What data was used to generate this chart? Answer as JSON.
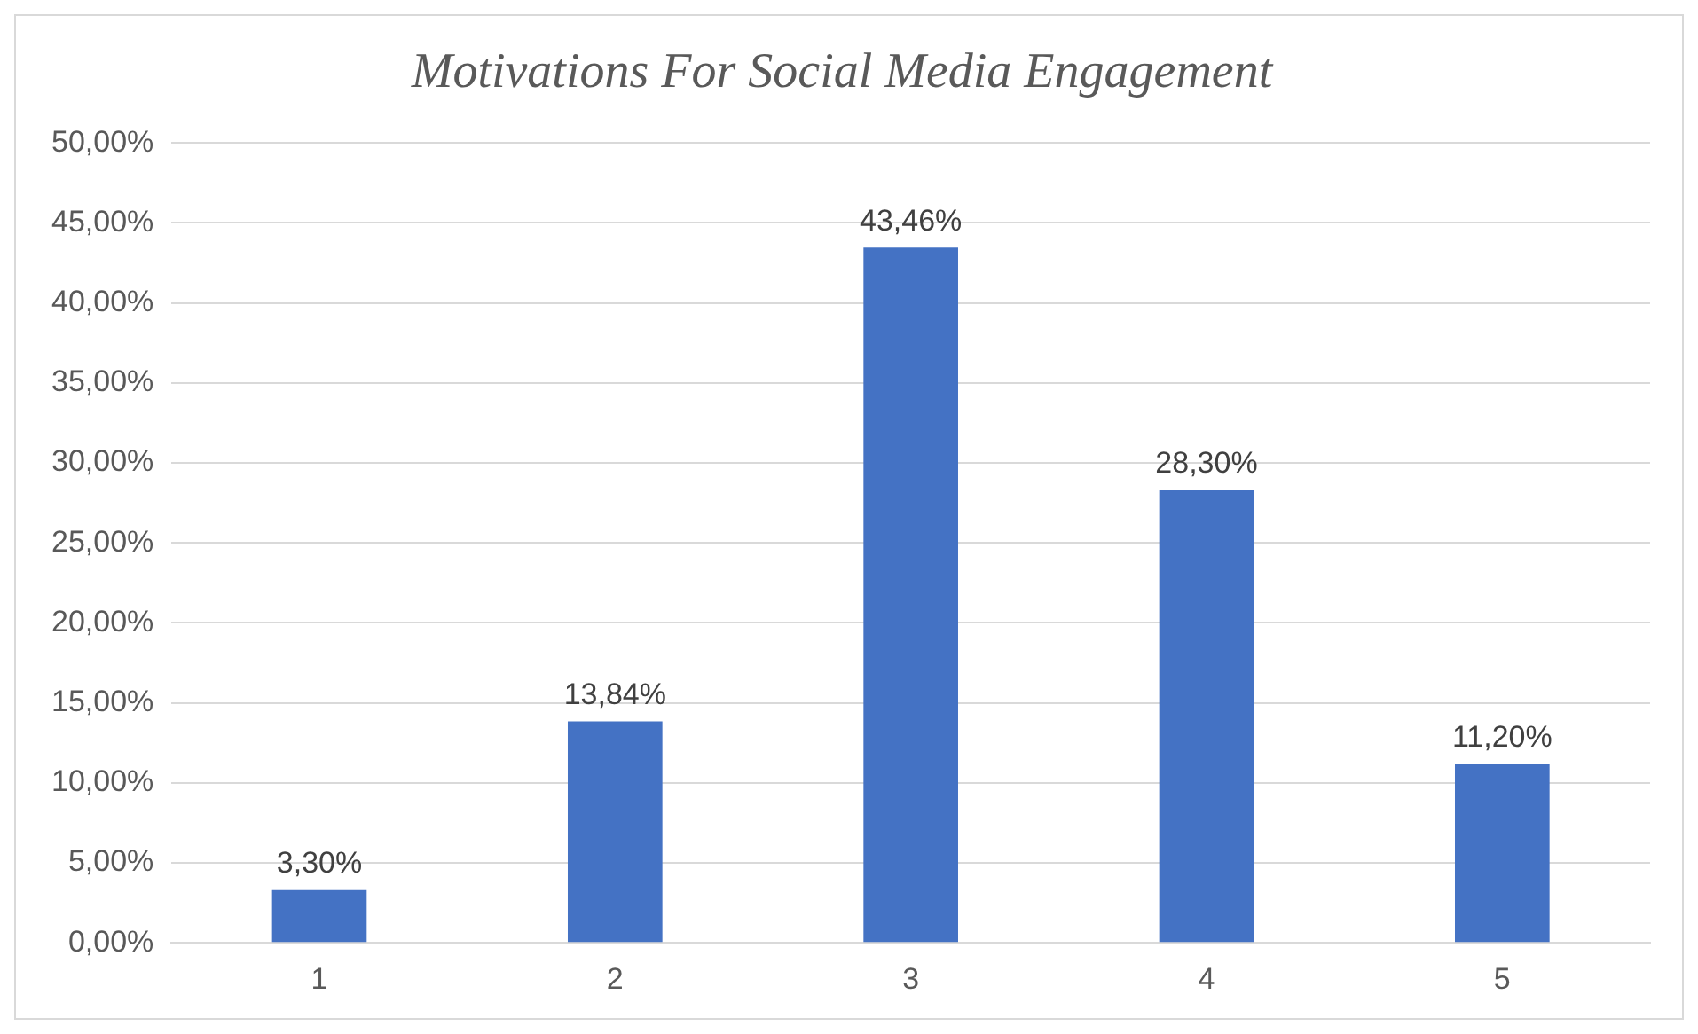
{
  "chart_data": {
    "type": "bar",
    "title": "Motivations For Social Media Engagement",
    "categories": [
      "1",
      "2",
      "3",
      "4",
      "5"
    ],
    "values": [
      3.3,
      13.84,
      43.46,
      28.3,
      11.2
    ],
    "value_labels": [
      "3,30%",
      "13,84%",
      "43,46%",
      "28,30%",
      "11,20%"
    ],
    "color": "#4472c4",
    "ylim": [
      0,
      50
    ],
    "yticks": [
      {
        "value": 0,
        "label": "0,00%"
      },
      {
        "value": 5,
        "label": "5,00%"
      },
      {
        "value": 10,
        "label": "10,00%"
      },
      {
        "value": 15,
        "label": "15,00%"
      },
      {
        "value": 20,
        "label": "20,00%"
      },
      {
        "value": 25,
        "label": "25,00%"
      },
      {
        "value": 30,
        "label": "30,00%"
      },
      {
        "value": 35,
        "label": "35,00%"
      },
      {
        "value": 40,
        "label": "40,00%"
      },
      {
        "value": 45,
        "label": "45,00%"
      },
      {
        "value": 50,
        "label": "50,00%"
      }
    ],
    "grid": "y",
    "legend": false
  }
}
